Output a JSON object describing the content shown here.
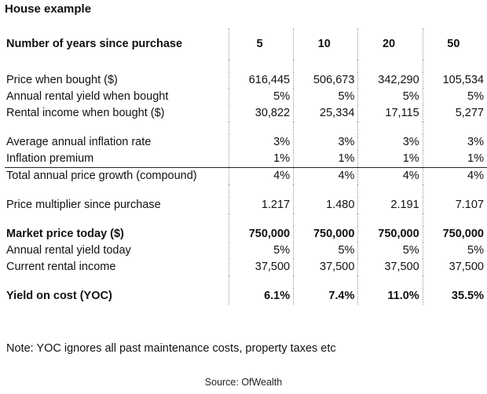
{
  "title": "House example",
  "header": {
    "label": "Number of years since purchase",
    "years": [
      "5",
      "10",
      "20",
      "50"
    ]
  },
  "rows": {
    "price_bought": {
      "label": "Price when bought ($)",
      "values": [
        "616,445",
        "506,673",
        "342,290",
        "105,534"
      ]
    },
    "yield_bought": {
      "label": "Annual rental yield when bought",
      "values": [
        "5%",
        "5%",
        "5%",
        "5%"
      ]
    },
    "income_bought": {
      "label": "Rental income when bought ($)",
      "values": [
        "30,822",
        "25,334",
        "17,115",
        "5,277"
      ]
    },
    "inflation": {
      "label": "Average annual inflation rate",
      "values": [
        "3%",
        "3%",
        "3%",
        "3%"
      ]
    },
    "premium": {
      "label": "Inflation premium",
      "values": [
        "1%",
        "1%",
        "1%",
        "1%"
      ]
    },
    "growth": {
      "label": "Total annual price growth (compound)",
      "values": [
        "4%",
        "4%",
        "4%",
        "4%"
      ]
    },
    "multiplier": {
      "label": "Price multiplier since purchase",
      "values": [
        "1.217",
        "1.480",
        "2.191",
        "7.107"
      ]
    },
    "market_price": {
      "label": "Market price today ($)",
      "values": [
        "750,000",
        "750,000",
        "750,000",
        "750,000"
      ]
    },
    "yield_today": {
      "label": "Annual rental yield today",
      "values": [
        "5%",
        "5%",
        "5%",
        "5%"
      ]
    },
    "income_today": {
      "label": "Current rental income",
      "values": [
        "37,500",
        "37,500",
        "37,500",
        "37,500"
      ]
    },
    "yoc": {
      "label": "Yield on cost (YOC)",
      "values": [
        "6.1%",
        "7.4%",
        "11.0%",
        "35.5%"
      ]
    }
  },
  "note": "Note: YOC ignores all past maintenance costs, property taxes etc",
  "source": "Source: OfWealth"
}
